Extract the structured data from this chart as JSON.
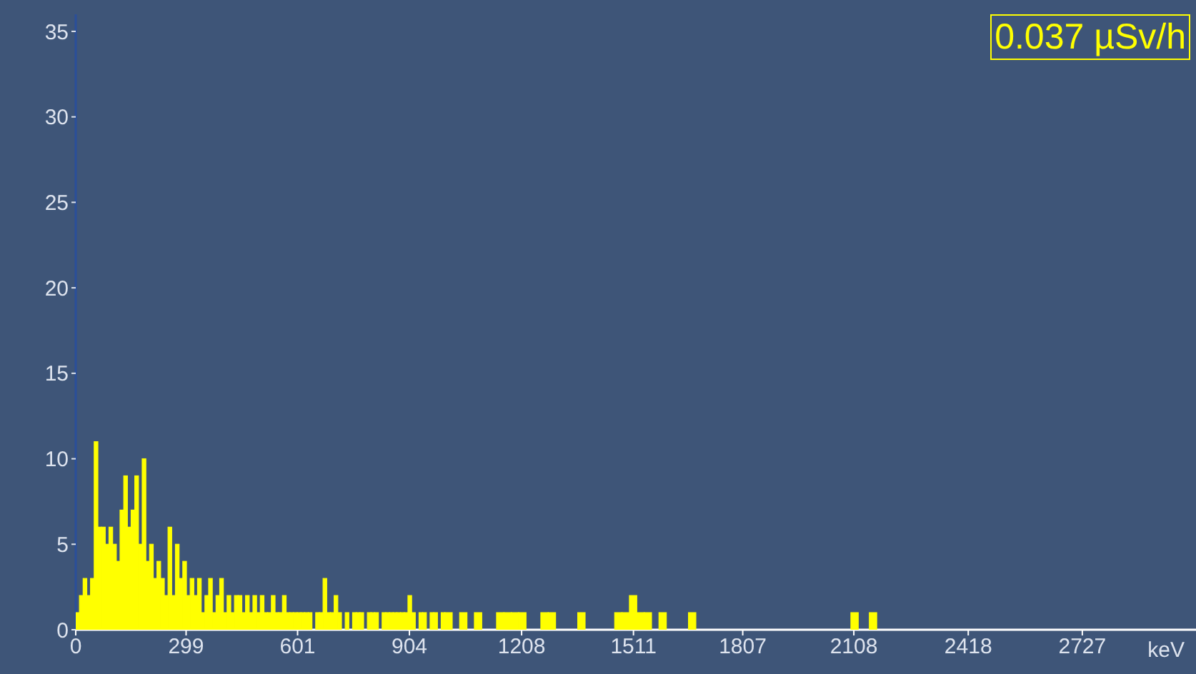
{
  "chart_data": {
    "type": "histogram",
    "xlabel": "keV",
    "annotations": [
      "0.037 µSv/h"
    ],
    "color": "#ffff00",
    "bins": [
      0,
      10,
      20,
      30,
      40,
      50,
      60,
      70,
      80,
      90,
      100,
      110,
      120,
      130,
      140,
      150,
      160,
      170,
      180,
      190,
      200,
      210,
      220,
      230,
      240,
      250,
      260,
      270,
      280,
      290,
      300,
      310,
      320,
      330,
      340,
      350,
      360,
      370,
      380,
      390,
      400,
      410,
      420,
      430,
      440,
      450,
      460,
      470,
      480,
      490,
      500,
      510,
      520,
      530,
      540,
      550,
      560,
      570,
      580,
      590,
      600,
      610,
      620,
      630,
      640,
      650,
      660,
      670,
      680,
      690,
      700,
      710,
      720,
      730,
      740,
      750,
      760,
      770,
      780,
      790,
      800,
      810,
      820,
      830,
      840,
      850,
      860,
      870,
      880,
      890,
      900,
      910,
      920,
      930,
      940,
      950,
      960,
      970,
      980,
      990,
      1000,
      1020,
      1040,
      1060,
      1080,
      1100,
      1140,
      1160,
      1180,
      1200,
      1220,
      1260,
      1280,
      1300,
      1360,
      1380,
      1460,
      1480,
      1500,
      1520,
      1540,
      1560,
      1580,
      1600,
      1660,
      1680,
      2100,
      2120,
      2150,
      2170
    ],
    "values": [
      1,
      2,
      3,
      2,
      3,
      11,
      6,
      6,
      5,
      6,
      5,
      4,
      7,
      9,
      6,
      7,
      9,
      5,
      10,
      4,
      5,
      3,
      4,
      3,
      2,
      6,
      2,
      5,
      3,
      4,
      2,
      3,
      2,
      3,
      1,
      2,
      3,
      1,
      2,
      3,
      1,
      2,
      1,
      2,
      2,
      1,
      2,
      1,
      2,
      1,
      2,
      1,
      1,
      2,
      1,
      1,
      2,
      1,
      1,
      1,
      1,
      1,
      1,
      1,
      0,
      1,
      1,
      3,
      1,
      1,
      2,
      1,
      0,
      1,
      0,
      1,
      1,
      1,
      0,
      1,
      1,
      1,
      0,
      1,
      1,
      1,
      1,
      1,
      1,
      1,
      2,
      1,
      0,
      1,
      1,
      0,
      1,
      1,
      0,
      1,
      1,
      0,
      1,
      0,
      1,
      0,
      1,
      1,
      1,
      1,
      0,
      1,
      1,
      0,
      1,
      0,
      1,
      1,
      2,
      1,
      1,
      0,
      1,
      0,
      1,
      0,
      1,
      0,
      1
    ],
    "xlim": [
      0,
      3035
    ],
    "xticks": [
      0,
      299,
      601,
      904,
      1208,
      1511,
      1807,
      2108,
      2418,
      2727
    ],
    "ylim": [
      0,
      36
    ],
    "yticks": [
      0,
      5,
      10,
      15,
      20,
      25,
      30,
      35
    ]
  }
}
